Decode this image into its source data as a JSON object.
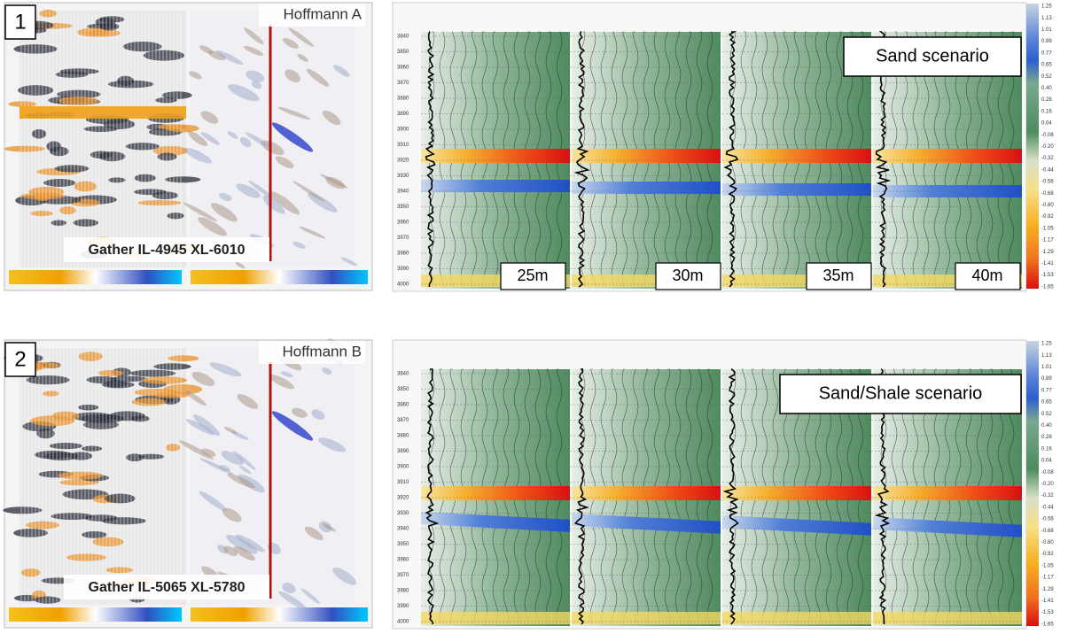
{
  "rows": [
    {
      "number": "1",
      "stack_title": "Hoffmann A",
      "gather_label": "Gather IL-4945 XL-6010",
      "scenario": "Sand scenario",
      "thicknesses": [
        "25m",
        "30m",
        "35m",
        "40m"
      ]
    },
    {
      "number": "2",
      "stack_title": "Hoffmann B",
      "gather_label": "Gather IL-5065 XL-5780",
      "scenario": "Sand/Shale scenario"
    }
  ],
  "depth_labels": [
    "3840",
    "3850",
    "3860",
    "3870",
    "3880",
    "3890",
    "3900",
    "3910",
    "3920",
    "3930",
    "3940",
    "3950",
    "3960",
    "3970",
    "3980",
    "3990",
    "4000"
  ],
  "colorbar_labels": [
    "1.25",
    "1.13",
    "1.01",
    "0.89",
    "0.77",
    "0.65",
    "0.52",
    "0.40",
    "0.28",
    "0.16",
    "0.04",
    "-0.08",
    "-0.20",
    "-0.32",
    "-0.44",
    "-0.56",
    "-0.68",
    "-0.80",
    "-0.92",
    "-1.05",
    "-1.17",
    "-1.29",
    "-1.41",
    "-1.53",
    "-1.65"
  ]
}
